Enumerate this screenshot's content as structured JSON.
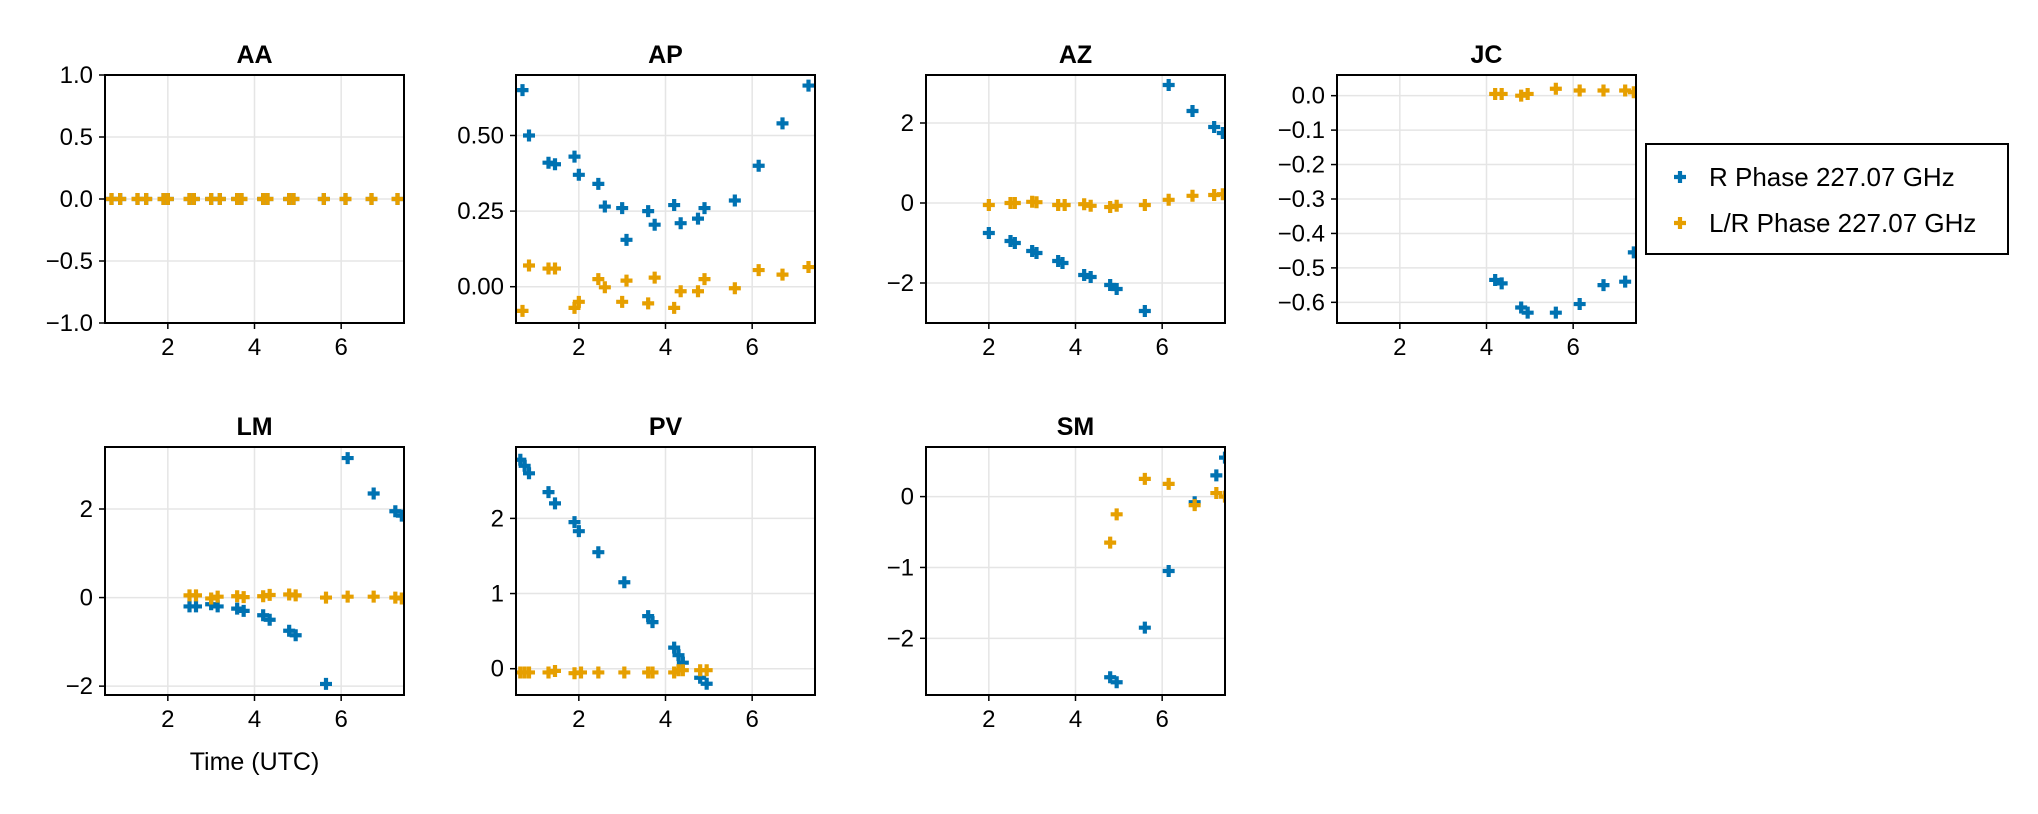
{
  "colors": {
    "r_phase": "#0072b2",
    "lr_phase": "#e69f00",
    "grid": "#e5e5e5",
    "frame": "#000000"
  },
  "legend": {
    "position": "right",
    "entries": [
      {
        "series": "R Phase 227.07 GHz",
        "color": "#0072b2"
      },
      {
        "series": "L/R Phase 227.07 GHz",
        "color": "#e69f00"
      }
    ]
  },
  "chart_data": [
    {
      "type": "scatter",
      "title": "AA",
      "xlabel": "",
      "xlim": [
        0.55,
        7.45
      ],
      "ylim": [
        -1.0,
        1.0
      ],
      "xticks": [
        "2",
        "4",
        "6"
      ],
      "yticks": [
        "−1.0",
        "−0.5",
        "0.0",
        "0.5",
        "1.0"
      ],
      "grid": true,
      "series": [
        {
          "name": "R Phase 227.07 GHz",
          "points": [
            [
              0.7,
              0
            ],
            [
              0.9,
              0
            ],
            [
              1.3,
              0
            ],
            [
              1.5,
              0
            ],
            [
              1.9,
              0
            ],
            [
              2.0,
              0
            ],
            [
              2.5,
              0
            ],
            [
              2.6,
              0
            ],
            [
              3.0,
              0
            ],
            [
              3.2,
              0
            ],
            [
              3.6,
              0
            ],
            [
              3.7,
              0
            ],
            [
              4.2,
              0
            ],
            [
              4.3,
              0
            ],
            [
              4.8,
              0
            ],
            [
              4.9,
              0
            ],
            [
              5.6,
              0
            ],
            [
              6.1,
              0
            ],
            [
              6.7,
              0
            ],
            [
              7.3,
              0
            ]
          ]
        },
        {
          "name": "L/R Phase 227.07 GHz",
          "points": [
            [
              0.7,
              0
            ],
            [
              0.9,
              0
            ],
            [
              1.3,
              0
            ],
            [
              1.5,
              0
            ],
            [
              1.9,
              0
            ],
            [
              2.0,
              0
            ],
            [
              2.5,
              0
            ],
            [
              2.6,
              0
            ],
            [
              3.0,
              0
            ],
            [
              3.2,
              0
            ],
            [
              3.6,
              0
            ],
            [
              3.7,
              0
            ],
            [
              4.2,
              0
            ],
            [
              4.3,
              0
            ],
            [
              4.8,
              0
            ],
            [
              4.9,
              0
            ],
            [
              5.6,
              0
            ],
            [
              6.1,
              0
            ],
            [
              6.7,
              0
            ],
            [
              7.3,
              0
            ]
          ]
        }
      ]
    },
    {
      "type": "scatter",
      "title": "AP",
      "xlabel": "",
      "xlim": [
        0.55,
        7.45
      ],
      "ylim": [
        -0.12,
        0.7
      ],
      "xticks": [
        "2",
        "4",
        "6"
      ],
      "yticks": [
        "0.00",
        "0.25",
        "0.50"
      ],
      "grid": true,
      "series": [
        {
          "name": "R Phase 227.07 GHz",
          "points": [
            [
              0.7,
              0.65
            ],
            [
              0.85,
              0.5
            ],
            [
              1.3,
              0.41
            ],
            [
              1.45,
              0.405
            ],
            [
              1.9,
              0.43
            ],
            [
              2.0,
              0.37
            ],
            [
              2.45,
              0.34
            ],
            [
              2.6,
              0.265
            ],
            [
              3.0,
              0.26
            ],
            [
              3.1,
              0.155
            ],
            [
              3.6,
              0.25
            ],
            [
              3.75,
              0.205
            ],
            [
              4.2,
              0.27
            ],
            [
              4.35,
              0.21
            ],
            [
              4.75,
              0.225
            ],
            [
              4.9,
              0.26
            ],
            [
              5.6,
              0.285
            ],
            [
              6.15,
              0.4
            ],
            [
              6.7,
              0.54
            ],
            [
              7.3,
              0.665
            ]
          ]
        },
        {
          "name": "L/R Phase 227.07 GHz",
          "points": [
            [
              0.7,
              -0.08
            ],
            [
              0.85,
              0.07
            ],
            [
              1.3,
              0.06
            ],
            [
              1.45,
              0.06
            ],
            [
              1.9,
              -0.07
            ],
            [
              2.0,
              -0.05
            ],
            [
              2.45,
              0.025
            ],
            [
              2.6,
              -0.002
            ],
            [
              3.0,
              -0.05
            ],
            [
              3.1,
              0.02
            ],
            [
              3.6,
              -0.055
            ],
            [
              3.75,
              0.03
            ],
            [
              4.2,
              -0.07
            ],
            [
              4.35,
              -0.015
            ],
            [
              4.75,
              -0.015
            ],
            [
              4.9,
              0.025
            ],
            [
              5.6,
              -0.005
            ],
            [
              6.15,
              0.055
            ],
            [
              6.7,
              0.04
            ],
            [
              7.3,
              0.065
            ]
          ]
        }
      ]
    },
    {
      "type": "scatter",
      "title": "AZ",
      "xlabel": "",
      "xlim": [
        0.55,
        7.45
      ],
      "ylim": [
        -3.0,
        3.2
      ],
      "xticks": [
        "2",
        "4",
        "6"
      ],
      "yticks": [
        "−2",
        "0",
        "2"
      ],
      "grid": true,
      "series": [
        {
          "name": "R Phase 227.07 GHz",
          "points": [
            [
              2.0,
              -0.75
            ],
            [
              2.5,
              -0.95
            ],
            [
              2.6,
              -1.0
            ],
            [
              3.0,
              -1.2
            ],
            [
              3.1,
              -1.25
            ],
            [
              3.6,
              -1.45
            ],
            [
              3.7,
              -1.5
            ],
            [
              4.2,
              -1.8
            ],
            [
              4.35,
              -1.85
            ],
            [
              4.8,
              -2.05
            ],
            [
              4.95,
              -2.15
            ],
            [
              5.6,
              -2.7
            ],
            [
              6.15,
              2.95
            ],
            [
              6.7,
              2.3
            ],
            [
              7.2,
              1.9
            ],
            [
              7.4,
              1.75
            ]
          ]
        },
        {
          "name": "L/R Phase 227.07 GHz",
          "points": [
            [
              2.0,
              -0.05
            ],
            [
              2.5,
              0.0
            ],
            [
              2.6,
              0.0
            ],
            [
              3.0,
              0.03
            ],
            [
              3.1,
              0.02
            ],
            [
              3.6,
              -0.05
            ],
            [
              3.75,
              -0.05
            ],
            [
              4.2,
              -0.03
            ],
            [
              4.35,
              -0.07
            ],
            [
              4.8,
              -0.1
            ],
            [
              4.95,
              -0.07
            ],
            [
              5.6,
              -0.05
            ],
            [
              6.15,
              0.08
            ],
            [
              6.7,
              0.18
            ],
            [
              7.2,
              0.2
            ],
            [
              7.4,
              0.22
            ]
          ]
        }
      ]
    },
    {
      "type": "scatter",
      "title": "JC",
      "xlabel": "",
      "xlim": [
        0.55,
        7.45
      ],
      "ylim": [
        -0.66,
        0.06
      ],
      "xticks": [
        "2",
        "4",
        "6"
      ],
      "yticks": [
        "−0.6",
        "−0.5",
        "−0.4",
        "−0.3",
        "−0.2",
        "−0.1",
        "0.0"
      ],
      "grid": true,
      "series": [
        {
          "name": "R Phase 227.07 GHz",
          "points": [
            [
              4.2,
              -0.535
            ],
            [
              4.35,
              -0.545
            ],
            [
              4.8,
              -0.615
            ],
            [
              4.95,
              -0.63
            ],
            [
              5.6,
              -0.63
            ],
            [
              6.15,
              -0.605
            ],
            [
              6.7,
              -0.55
            ],
            [
              7.2,
              -0.54
            ],
            [
              7.4,
              -0.455
            ]
          ]
        },
        {
          "name": "L/R Phase 227.07 GHz",
          "points": [
            [
              4.2,
              0.005
            ],
            [
              4.35,
              0.005
            ],
            [
              4.8,
              0.0
            ],
            [
              4.95,
              0.005
            ],
            [
              5.6,
              0.02
            ],
            [
              6.15,
              0.015
            ],
            [
              6.7,
              0.015
            ],
            [
              7.2,
              0.015
            ],
            [
              7.4,
              0.01
            ]
          ]
        }
      ]
    },
    {
      "type": "scatter",
      "title": "LM",
      "xlabel": "Time (UTC)",
      "xlim": [
        0.55,
        7.45
      ],
      "ylim": [
        -2.2,
        3.4
      ],
      "xticks": [
        "2",
        "4",
        "6"
      ],
      "yticks": [
        "−2",
        "0",
        "2"
      ],
      "grid": true,
      "series": [
        {
          "name": "R Phase 227.07 GHz",
          "points": [
            [
              2.5,
              -0.2
            ],
            [
              2.65,
              -0.2
            ],
            [
              3.0,
              -0.15
            ],
            [
              3.15,
              -0.2
            ],
            [
              3.6,
              -0.25
            ],
            [
              3.75,
              -0.3
            ],
            [
              4.2,
              -0.4
            ],
            [
              4.35,
              -0.5
            ],
            [
              4.8,
              -0.75
            ],
            [
              4.95,
              -0.85
            ],
            [
              5.65,
              -1.95
            ],
            [
              6.15,
              3.15
            ],
            [
              6.75,
              2.35
            ],
            [
              7.25,
              1.95
            ],
            [
              7.4,
              1.85
            ]
          ]
        },
        {
          "name": "L/R Phase 227.07 GHz",
          "points": [
            [
              2.5,
              0.05
            ],
            [
              2.65,
              0.05
            ],
            [
              3.0,
              -0.02
            ],
            [
              3.15,
              0.02
            ],
            [
              3.6,
              0.03
            ],
            [
              3.75,
              0.01
            ],
            [
              4.2,
              0.03
            ],
            [
              4.35,
              0.06
            ],
            [
              4.8,
              0.07
            ],
            [
              4.95,
              0.05
            ],
            [
              5.65,
              0.0
            ],
            [
              6.15,
              0.02
            ],
            [
              6.75,
              0.02
            ],
            [
              7.25,
              0.0
            ],
            [
              7.4,
              -0.02
            ]
          ]
        }
      ]
    },
    {
      "type": "scatter",
      "title": "PV",
      "xlabel": "",
      "xlim": [
        0.55,
        7.45
      ],
      "ylim": [
        -0.35,
        2.95
      ],
      "xticks": [
        "2",
        "4",
        "6"
      ],
      "yticks": [
        "0",
        "1",
        "2"
      ],
      "grid": true,
      "series": [
        {
          "name": "R Phase 227.07 GHz",
          "points": [
            [
              0.65,
              2.78
            ],
            [
              0.75,
              2.7
            ],
            [
              0.85,
              2.6
            ],
            [
              1.3,
              2.35
            ],
            [
              1.45,
              2.2
            ],
            [
              1.9,
              1.95
            ],
            [
              2.0,
              1.83
            ],
            [
              2.45,
              1.55
            ],
            [
              3.05,
              1.15
            ],
            [
              3.6,
              0.7
            ],
            [
              3.7,
              0.62
            ],
            [
              4.2,
              0.28
            ],
            [
              4.3,
              0.18
            ],
            [
              4.4,
              0.08
            ],
            [
              4.8,
              -0.12
            ],
            [
              4.95,
              -0.2
            ]
          ]
        },
        {
          "name": "L/R Phase 227.07 GHz",
          "points": [
            [
              0.65,
              -0.05
            ],
            [
              0.75,
              -0.05
            ],
            [
              0.85,
              -0.05
            ],
            [
              1.3,
              -0.05
            ],
            [
              1.45,
              -0.03
            ],
            [
              1.9,
              -0.06
            ],
            [
              2.05,
              -0.05
            ],
            [
              2.45,
              -0.05
            ],
            [
              3.05,
              -0.05
            ],
            [
              3.6,
              -0.05
            ],
            [
              3.7,
              -0.05
            ],
            [
              4.2,
              -0.05
            ],
            [
              4.3,
              -0.02
            ],
            [
              4.4,
              -0.02
            ],
            [
              4.8,
              -0.02
            ],
            [
              4.95,
              -0.02
            ]
          ]
        }
      ]
    },
    {
      "type": "scatter",
      "title": "SM",
      "xlabel": "",
      "xlim": [
        0.55,
        7.45
      ],
      "ylim": [
        -2.8,
        0.7
      ],
      "xticks": [
        "2",
        "4",
        "6"
      ],
      "yticks": [
        "−2",
        "−1",
        "0"
      ],
      "grid": true,
      "series": [
        {
          "name": "R Phase 227.07 GHz",
          "points": [
            [
              4.8,
              -2.55
            ],
            [
              4.95,
              -2.62
            ],
            [
              5.6,
              -1.85
            ],
            [
              6.15,
              -1.05
            ],
            [
              6.75,
              -0.08
            ],
            [
              7.25,
              0.3
            ],
            [
              7.45,
              0.55
            ]
          ]
        },
        {
          "name": "L/R Phase 227.07 GHz",
          "points": [
            [
              4.8,
              -0.65
            ],
            [
              4.95,
              -0.25
            ],
            [
              5.6,
              0.25
            ],
            [
              6.15,
              0.18
            ],
            [
              6.75,
              -0.12
            ],
            [
              7.25,
              0.05
            ],
            [
              7.45,
              0.0
            ]
          ]
        }
      ]
    }
  ]
}
